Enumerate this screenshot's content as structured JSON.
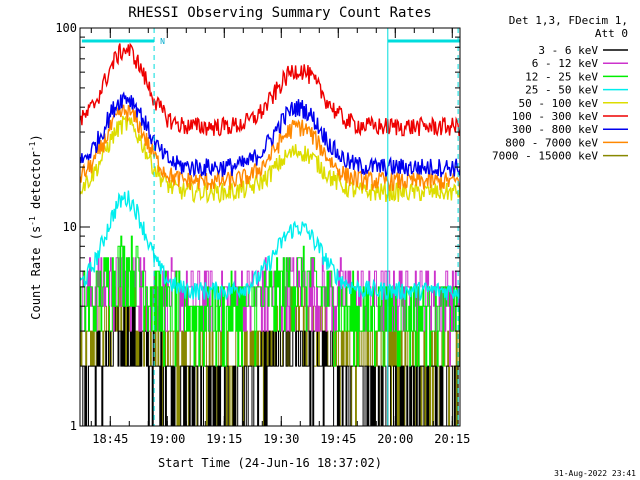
{
  "chart_data": {
    "type": "line",
    "title": "RHESSI Observing Summary Count Rates",
    "xlabel": "Start Time (24-Jun-16 18:37:02)",
    "ylabel_main": "Count Rate (s",
    "ylabel_sup1": "-1",
    "ylabel_mid": " detector",
    "ylabel_sup2": "-1",
    "ylabel_end": ")",
    "y_scale": "log",
    "ylim": [
      1,
      100
    ],
    "y_ticks": [
      {
        "value": 1,
        "label": "1"
      },
      {
        "value": 10,
        "label": "10"
      },
      {
        "value": 100,
        "label": "100"
      }
    ],
    "x_start_minutes": 0,
    "x_end_minutes": 100,
    "x_ticks": [
      {
        "minute": 7.97,
        "label": "18:45"
      },
      {
        "minute": 22.97,
        "label": "19:00"
      },
      {
        "minute": 37.97,
        "label": "19:15"
      },
      {
        "minute": 52.97,
        "label": "19:30"
      },
      {
        "minute": 67.97,
        "label": "19:45"
      },
      {
        "minute": 82.97,
        "label": "20:00"
      },
      {
        "minute": 97.97,
        "label": "20:15"
      }
    ],
    "legend_header": [
      "Det 1,3, FDecim 1,",
      "Att 0"
    ],
    "legend_position": "right",
    "attenuator_flags": [
      {
        "start": 0.5,
        "end": 19.5,
        "label": "N"
      },
      {
        "start": 81,
        "end": 100,
        "label": ""
      }
    ],
    "dashed_markers_minutes": [
      19.5,
      99.5
    ],
    "solid_markers_minutes": [
      81
    ],
    "series": [
      {
        "name": "3 - 6 keV",
        "color": "#000000",
        "kind": "step",
        "peak1": 2.8,
        "peak2": 2.5,
        "base": 1.6
      },
      {
        "name": "6 - 12 keV",
        "color": "#cc33cc",
        "kind": "step",
        "peak1": 5.5,
        "peak2": 5.0,
        "base": 4.5
      },
      {
        "name": "12 - 25 keV",
        "color": "#00ee00",
        "kind": "step",
        "peak1": 6.5,
        "peak2": 5.5,
        "base": 3.8
      },
      {
        "name": "25 - 50 keV",
        "color": "#00eeee",
        "kind": "smooth",
        "peak1": 14,
        "peak2": 10,
        "base": 4.8
      },
      {
        "name": "50 - 100 keV",
        "color": "#dddd00",
        "kind": "smooth",
        "peak1": 33,
        "peak2": 24,
        "base": 15
      },
      {
        "name": "100 - 300 keV",
        "color": "#ee0000",
        "kind": "smooth",
        "peak1": 78,
        "peak2": 62,
        "base": 32
      },
      {
        "name": "300 - 800 keV",
        "color": "#0000ee",
        "kind": "smooth",
        "peak1": 45,
        "peak2": 40,
        "base": 20
      },
      {
        "name": "800 - 7000 keV",
        "color": "#ff8800",
        "kind": "smooth",
        "peak1": 38,
        "peak2": 32,
        "base": 17
      },
      {
        "name": "7000 - 15000 keV",
        "color": "#888800",
        "kind": "step",
        "peak1": 3.8,
        "peak2": 3.5,
        "base": 2.2
      }
    ]
  },
  "timestamp": "31-Aug-2022 23:41"
}
